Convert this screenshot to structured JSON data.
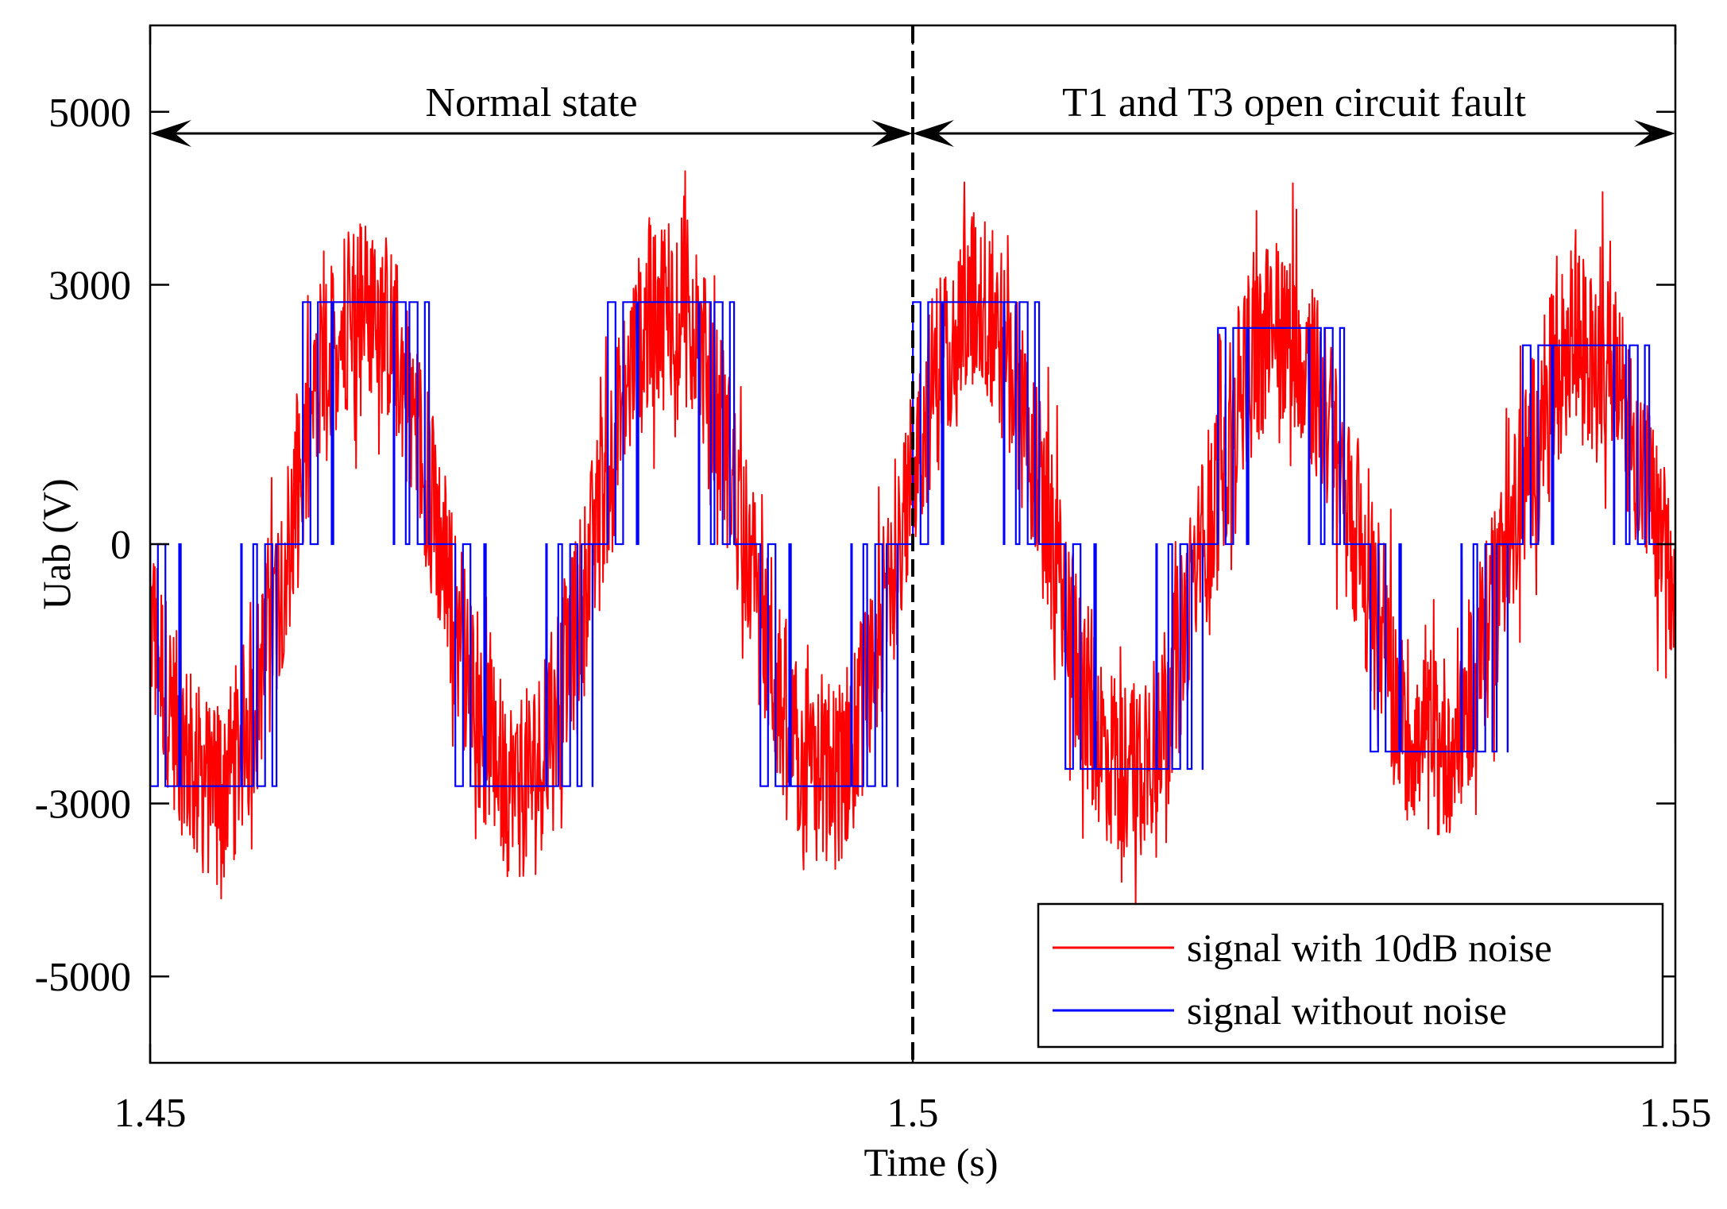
{
  "chart_data": {
    "type": "line",
    "title": "",
    "xlabel": "Time (s)",
    "ylabel": "Uab (V)",
    "xlim": [
      1.45,
      1.55
    ],
    "ylim": [
      -6000,
      6000
    ],
    "xticks": [
      1.45,
      1.5,
      1.55
    ],
    "xtick_labels": [
      "1.45",
      "1.5",
      "1.55"
    ],
    "yticks": [
      5000,
      3000,
      0,
      -3000,
      -5000
    ],
    "ytick_labels": [
      "5000",
      "3000",
      "0",
      "-3000",
      "-5000"
    ],
    "grid": false,
    "legend_position": "bottom-right",
    "fault_time": 1.5,
    "fundamental_frequency_hz": 50,
    "switching_frequency_hz": 1000,
    "normal_dc_level": 2800,
    "fault_phase_levels": [
      2800,
      -2600,
      2500,
      -2400,
      2300
    ],
    "noise_peak": 4500,
    "annotations": [
      {
        "label": "Normal state",
        "x_start": 1.45,
        "x_end": 1.5,
        "y": 4750
      },
      {
        "label": "T1 and T3 open circuit fault",
        "x_start": 1.5,
        "x_end": 1.55,
        "y": 4750
      }
    ],
    "series": [
      {
        "name": "signal with 10dB noise",
        "color": "#ff0000"
      },
      {
        "name": "signal without noise",
        "color": "#0000ff"
      }
    ]
  }
}
